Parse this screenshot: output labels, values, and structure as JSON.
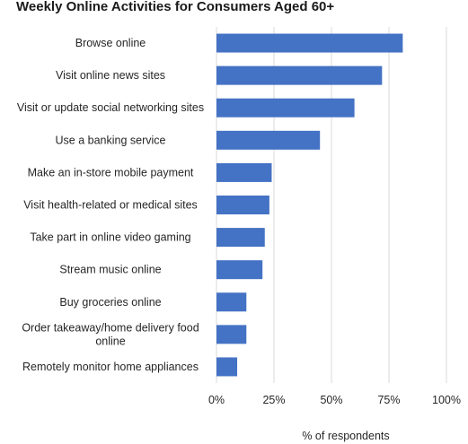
{
  "chart_data": {
    "type": "bar",
    "orientation": "horizontal",
    "title": "Weekly Online Activities for Consumers Aged 60+",
    "xlabel": "% of respondents",
    "ylabel": "",
    "xlim": [
      0,
      100
    ],
    "x_ticks": [
      0,
      25,
      50,
      75,
      100
    ],
    "x_tick_labels": [
      "0%",
      "25%",
      "50%",
      "75%",
      "100%"
    ],
    "grid": true,
    "legend": "none",
    "bar_color": "#4472C4",
    "grid_color": "#d9d9d9",
    "categories": [
      [
        "Browse online"
      ],
      [
        "Visit online news sites"
      ],
      [
        "Visit or update social networking sites"
      ],
      [
        "Use a banking service"
      ],
      [
        "Make an in-store mobile payment"
      ],
      [
        "Visit health-related or medical sites"
      ],
      [
        "Take part in online video gaming"
      ],
      [
        "Stream music online"
      ],
      [
        "Buy groceries online"
      ],
      [
        "Order takeaway/home delivery food",
        "online"
      ],
      [
        "Remotely monitor home appliances"
      ]
    ],
    "values": [
      81,
      72,
      60,
      45,
      24,
      23,
      21,
      20,
      13,
      13,
      9
    ]
  }
}
